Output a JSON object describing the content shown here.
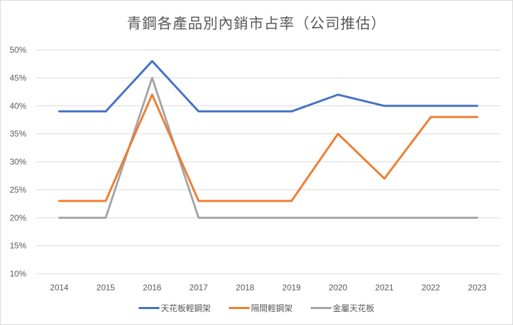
{
  "title": "青鋼各產品別內銷市占率（公司推估）",
  "chart_data": {
    "type": "line",
    "title": "青鋼各產品別內銷市占率（公司推估）",
    "xlabel": "",
    "ylabel": "",
    "categories": [
      "2014",
      "2015",
      "2016",
      "2017",
      "2018",
      "2019",
      "2020",
      "2021",
      "2022",
      "2023"
    ],
    "yticks": [
      "10%",
      "15%",
      "20%",
      "25%",
      "30%",
      "35%",
      "40%",
      "45%",
      "50%"
    ],
    "ylim": [
      10,
      50
    ],
    "grid": true,
    "legend_position": "bottom",
    "series": [
      {
        "name": "天花板輕鋼架",
        "color": "#4472c4",
        "values": [
          39,
          39,
          48,
          39,
          39,
          39,
          42,
          40,
          40,
          40
        ]
      },
      {
        "name": "隔間輕鋼架",
        "color": "#ed7d31",
        "values": [
          23,
          23,
          42,
          23,
          23,
          23,
          35,
          27,
          38,
          38
        ]
      },
      {
        "name": "金屬天花板",
        "color": "#a5a5a5",
        "values": [
          20,
          20,
          45,
          20,
          20,
          20,
          20,
          20,
          20,
          20
        ]
      }
    ]
  },
  "legend": [
    {
      "label": "天花板輕鋼架",
      "color": "#4472c4"
    },
    {
      "label": "隔間輕鋼架",
      "color": "#ed7d31"
    },
    {
      "label": "金屬天花板",
      "color": "#a5a5a5"
    }
  ]
}
